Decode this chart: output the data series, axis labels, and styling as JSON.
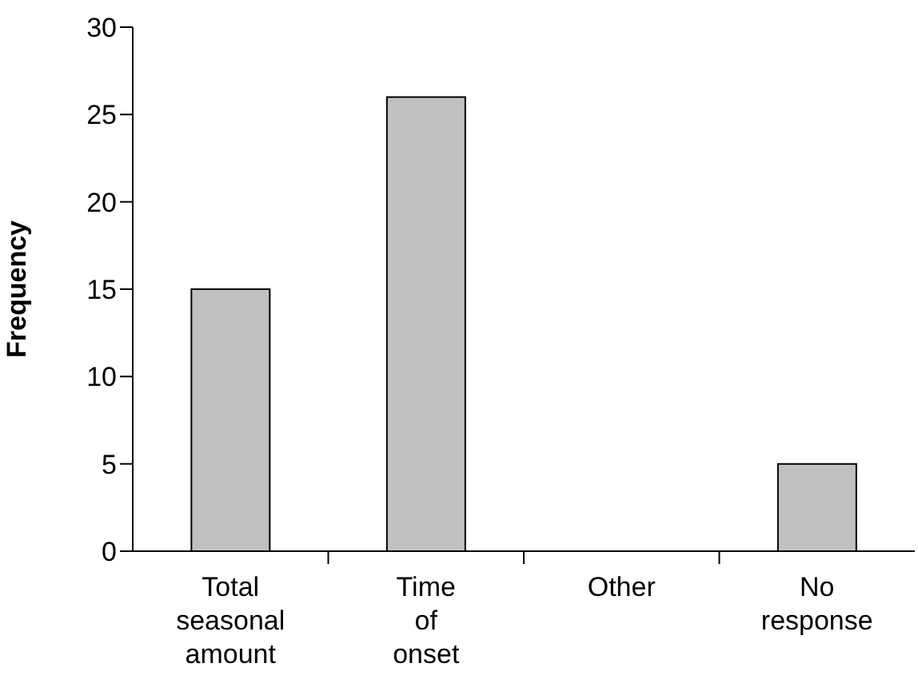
{
  "chart_data": {
    "type": "bar",
    "ylabel": "Frequency",
    "categories": [
      "Total seasonal amount",
      "Time of onset",
      "Other",
      "No response"
    ],
    "values": [
      15,
      26,
      0,
      5
    ],
    "color": "#c0c0c0",
    "ylim": [
      0,
      30
    ],
    "yticks": [
      0,
      5,
      10,
      15,
      20,
      25,
      30
    ],
    "grid": false
  }
}
